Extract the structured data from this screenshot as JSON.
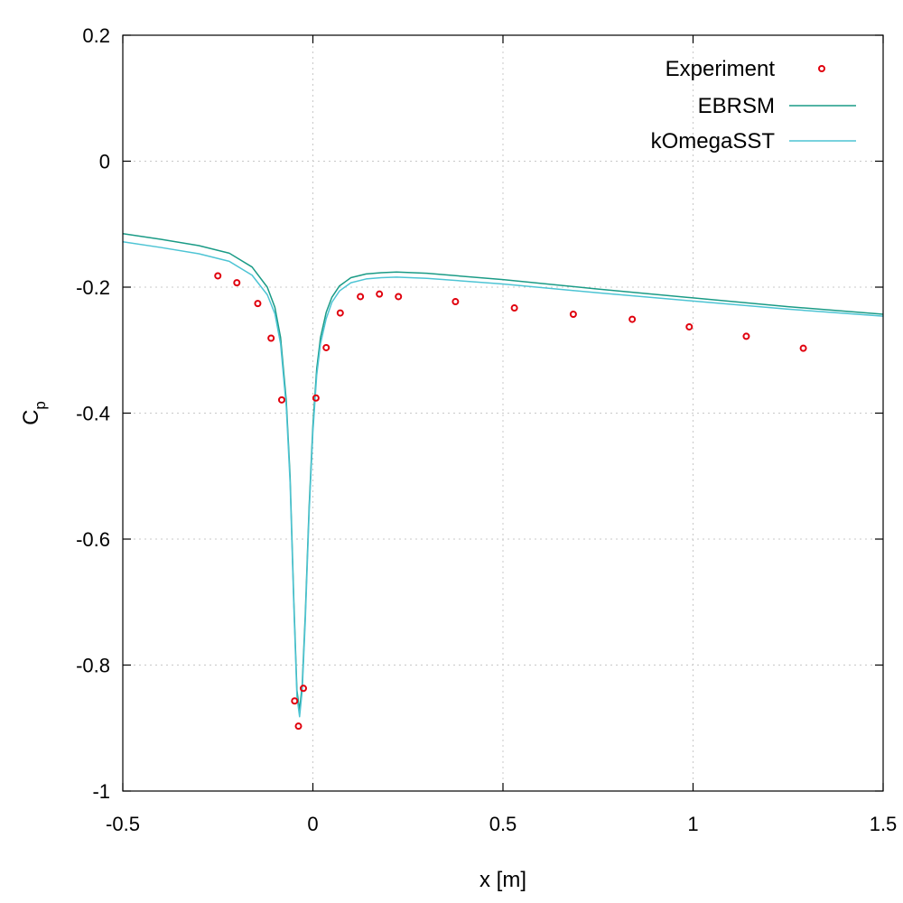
{
  "chart_data": {
    "type": "line",
    "title": "",
    "xlabel": "x [m]",
    "ylabel": "C",
    "ylabel_subscript": "p",
    "xlim": [
      -0.5,
      1.5
    ],
    "ylim": [
      -1,
      0.2
    ],
    "xticks": [
      -0.5,
      0,
      0.5,
      1,
      1.5
    ],
    "xtick_labels": [
      "-0.5",
      "0",
      "0.5",
      "1",
      "1.5"
    ],
    "yticks": [
      -1,
      -0.8,
      -0.6,
      -0.4,
      -0.2,
      0,
      0.2
    ],
    "ytick_labels": [
      "-1",
      "-0.8",
      "-0.6",
      "-0.4",
      "-0.2",
      "0",
      "0.2"
    ],
    "grid": true,
    "legend_position": "top-right",
    "series": [
      {
        "name": "Experiment",
        "style": "points",
        "color": "#e0000d",
        "x": [
          -0.25,
          -0.2,
          -0.145,
          -0.11,
          -0.082,
          -0.048,
          -0.038,
          -0.025,
          0.008,
          0.035,
          0.072,
          0.125,
          0.175,
          0.225,
          0.375,
          0.53,
          0.685,
          0.84,
          0.99,
          1.14,
          1.29
        ],
        "y": [
          -0.182,
          -0.193,
          -0.226,
          -0.281,
          -0.379,
          -0.857,
          -0.897,
          -0.837,
          -0.376,
          -0.296,
          -0.241,
          -0.215,
          -0.211,
          -0.215,
          -0.223,
          -0.233,
          -0.243,
          -0.251,
          -0.263,
          -0.278,
          -0.297
        ]
      },
      {
        "name": "EBRSM",
        "style": "line",
        "color": "#1a9b86",
        "x": [
          -0.5,
          -0.4,
          -0.3,
          -0.22,
          -0.16,
          -0.12,
          -0.1,
          -0.085,
          -0.07,
          -0.06,
          -0.05,
          -0.042,
          -0.035,
          -0.028,
          -0.02,
          -0.01,
          0.0,
          0.01,
          0.02,
          0.035,
          0.05,
          0.07,
          0.1,
          0.14,
          0.18,
          0.22,
          0.3,
          0.5,
          0.75,
          1.0,
          1.25,
          1.5
        ],
        "y": [
          -0.115,
          -0.124,
          -0.134,
          -0.146,
          -0.168,
          -0.2,
          -0.232,
          -0.28,
          -0.38,
          -0.5,
          -0.7,
          -0.84,
          -0.872,
          -0.83,
          -0.72,
          -0.55,
          -0.42,
          -0.33,
          -0.28,
          -0.24,
          -0.216,
          -0.198,
          -0.185,
          -0.179,
          -0.177,
          -0.176,
          -0.178,
          -0.188,
          -0.203,
          -0.217,
          -0.231,
          -0.243
        ]
      },
      {
        "name": "kOmegaSST",
        "style": "line",
        "color": "#4dc4d4",
        "x": [
          -0.5,
          -0.4,
          -0.3,
          -0.22,
          -0.16,
          -0.12,
          -0.1,
          -0.085,
          -0.07,
          -0.06,
          -0.05,
          -0.042,
          -0.035,
          -0.028,
          -0.02,
          -0.01,
          0.0,
          0.01,
          0.02,
          0.035,
          0.05,
          0.07,
          0.1,
          0.14,
          0.18,
          0.22,
          0.3,
          0.5,
          0.75,
          1.0,
          1.25,
          1.5
        ],
        "y": [
          -0.128,
          -0.137,
          -0.147,
          -0.159,
          -0.181,
          -0.212,
          -0.242,
          -0.29,
          -0.39,
          -0.51,
          -0.71,
          -0.85,
          -0.882,
          -0.84,
          -0.73,
          -0.56,
          -0.43,
          -0.34,
          -0.29,
          -0.25,
          -0.224,
          -0.206,
          -0.193,
          -0.187,
          -0.185,
          -0.184,
          -0.186,
          -0.195,
          -0.209,
          -0.222,
          -0.235,
          -0.246
        ]
      }
    ]
  }
}
